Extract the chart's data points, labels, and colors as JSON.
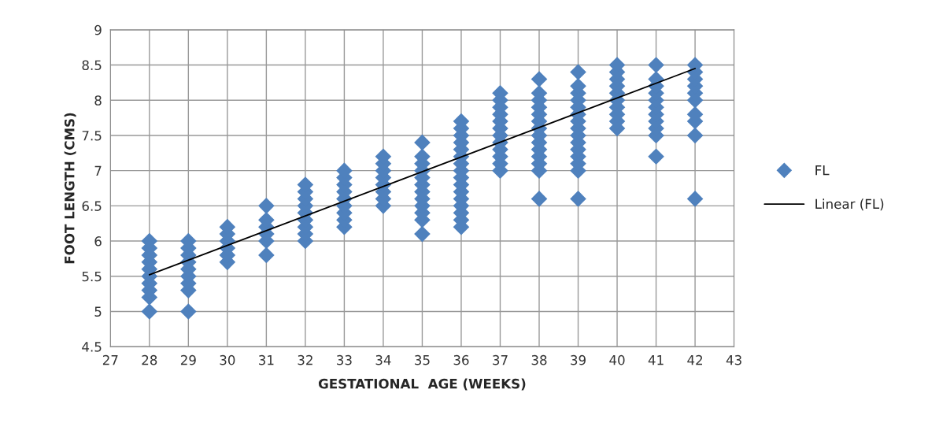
{
  "chart_data": {
    "type": "scatter",
    "xlabel": "GESTATIONAL  AGE (WEEKS)",
    "ylabel": "FOOT LENGTH (CMS)",
    "xlim": [
      27,
      43
    ],
    "xticks": [
      27,
      28,
      29,
      30,
      31,
      32,
      33,
      34,
      35,
      36,
      37,
      38,
      39,
      40,
      41,
      42,
      43
    ],
    "ylim": [
      4.5,
      9
    ],
    "yticks": [
      4.5,
      5,
      5.5,
      6,
      6.5,
      7,
      7.5,
      8,
      8.5,
      9
    ],
    "grid": true,
    "legend": "right",
    "marker": "diamond",
    "series": [
      {
        "name": "FL",
        "color": "#4f81bd",
        "x": [
          28,
          28,
          28,
          28,
          28,
          28,
          28,
          28,
          28,
          28,
          29,
          29,
          29,
          29,
          29,
          29,
          29,
          29,
          29,
          30,
          30,
          30,
          30,
          30,
          30,
          31,
          31,
          31,
          31,
          31,
          31,
          32,
          32,
          32,
          32,
          32,
          32,
          32,
          32,
          32,
          33,
          33,
          33,
          33,
          33,
          33,
          33,
          33,
          33,
          34,
          34,
          34,
          34,
          34,
          34,
          34,
          34,
          35,
          35,
          35,
          35,
          35,
          35,
          35,
          35,
          35,
          35,
          35,
          35,
          36,
          36,
          36,
          36,
          36,
          36,
          36,
          36,
          36,
          36,
          36,
          36,
          36,
          36,
          36,
          36,
          37,
          37,
          37,
          37,
          37,
          37,
          37,
          37,
          37,
          37,
          37,
          37,
          38,
          38,
          38,
          38,
          38,
          38,
          38,
          38,
          38,
          38,
          38,
          38,
          38,
          38,
          39,
          39,
          39,
          39,
          39,
          39,
          39,
          39,
          39,
          39,
          39,
          39,
          39,
          39,
          39,
          40,
          40,
          40,
          40,
          40,
          40,
          40,
          40,
          40,
          40,
          41,
          41,
          41,
          41,
          41,
          41,
          41,
          41,
          41,
          41,
          41,
          42,
          42,
          42,
          42,
          42,
          42,
          42,
          42,
          42,
          42
        ],
        "values": [
          5.0,
          5.2,
          5.3,
          5.4,
          5.5,
          5.6,
          5.7,
          5.8,
          5.9,
          6.0,
          5.0,
          5.3,
          5.4,
          5.5,
          5.6,
          5.7,
          5.8,
          5.9,
          6.0,
          5.7,
          5.8,
          5.9,
          6.0,
          6.1,
          6.2,
          5.8,
          6.0,
          6.1,
          6.2,
          6.3,
          6.5,
          6.0,
          6.1,
          6.2,
          6.3,
          6.4,
          6.5,
          6.6,
          6.7,
          6.8,
          6.2,
          6.3,
          6.4,
          6.5,
          6.6,
          6.7,
          6.8,
          6.9,
          7.0,
          6.5,
          6.6,
          6.7,
          6.8,
          6.9,
          7.0,
          7.1,
          7.2,
          6.1,
          6.3,
          6.4,
          6.5,
          6.6,
          6.7,
          6.8,
          6.9,
          7.0,
          7.1,
          7.2,
          7.4,
          6.2,
          6.3,
          6.4,
          6.5,
          6.6,
          6.7,
          6.8,
          6.9,
          7.0,
          7.1,
          7.2,
          7.3,
          7.4,
          7.5,
          7.6,
          7.7,
          7.0,
          7.1,
          7.2,
          7.3,
          7.4,
          7.5,
          7.6,
          7.7,
          7.8,
          7.9,
          8.0,
          8.1,
          6.6,
          7.0,
          7.1,
          7.2,
          7.3,
          7.4,
          7.5,
          7.6,
          7.7,
          7.8,
          7.9,
          8.0,
          8.1,
          8.3,
          6.6,
          7.0,
          7.1,
          7.2,
          7.3,
          7.4,
          7.5,
          7.6,
          7.7,
          7.8,
          7.9,
          8.0,
          8.1,
          8.2,
          8.4,
          7.6,
          7.7,
          7.8,
          7.9,
          8.0,
          8.1,
          8.2,
          8.3,
          8.4,
          8.5,
          7.2,
          7.5,
          7.6,
          7.7,
          7.8,
          7.9,
          8.0,
          8.1,
          8.2,
          8.3,
          8.5,
          6.6,
          7.5,
          7.7,
          7.8,
          8.0,
          8.1,
          8.2,
          8.3,
          8.4,
          8.5
        ]
      },
      {
        "name": "Linear (FL)",
        "type": "line",
        "color": "#000000",
        "marker": "none",
        "line_style": "solid",
        "x": [
          28,
          42
        ],
        "values": [
          5.52,
          8.45
        ]
      }
    ]
  }
}
